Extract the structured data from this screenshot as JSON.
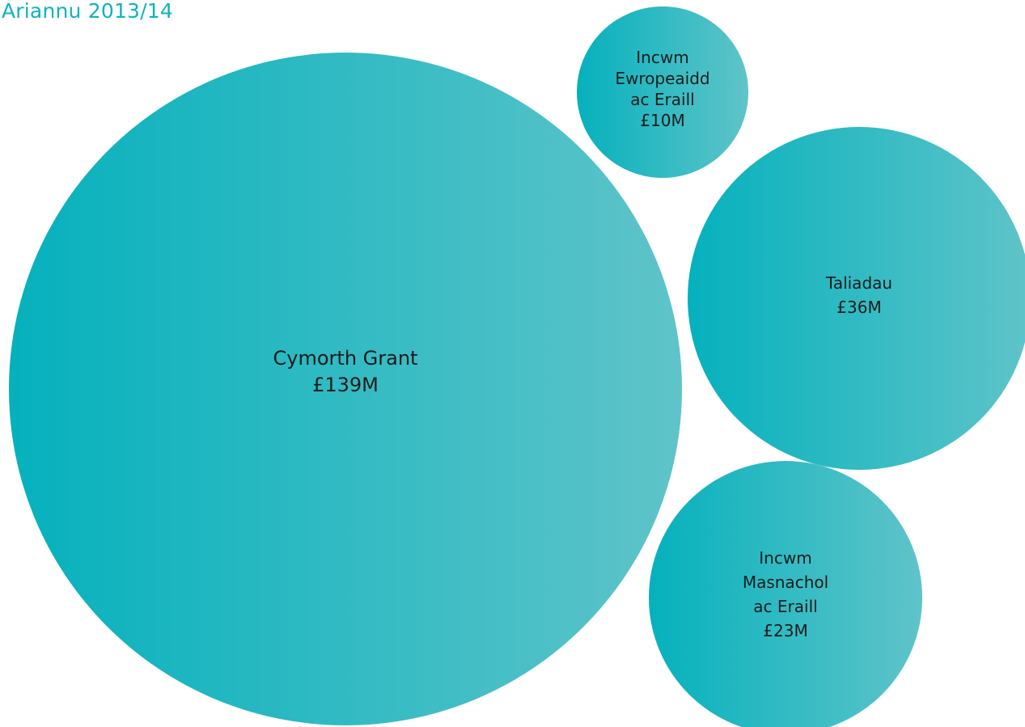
{
  "colors": {
    "title": "#10b3be",
    "gradient_start": "#05b1bd",
    "gradient_end": "#5fc4c9",
    "label": "#1c1c1c"
  },
  "chart_data": {
    "type": "bubble",
    "title": "Ariannu 2013/14",
    "unit": "£M",
    "series": [
      {
        "name": "Cymorth Grant",
        "label_lines": [
          "Cymorth Grant",
          "£139M"
        ],
        "value": 139
      },
      {
        "name": "Incwm Ewropeaidd ac Eraill",
        "label_lines": [
          "Incwm",
          "Ewropeaidd",
          "ac Eraill",
          "£10M"
        ],
        "value": 10
      },
      {
        "name": "Taliadau",
        "label_lines": [
          "Taliadau",
          "£36M"
        ],
        "value": 36
      },
      {
        "name": "Incwm Masnachol ac Eraill",
        "label_lines": [
          "Incwm",
          "Masnachol",
          "ac Eraill",
          "£23M"
        ],
        "value": 23
      }
    ]
  }
}
